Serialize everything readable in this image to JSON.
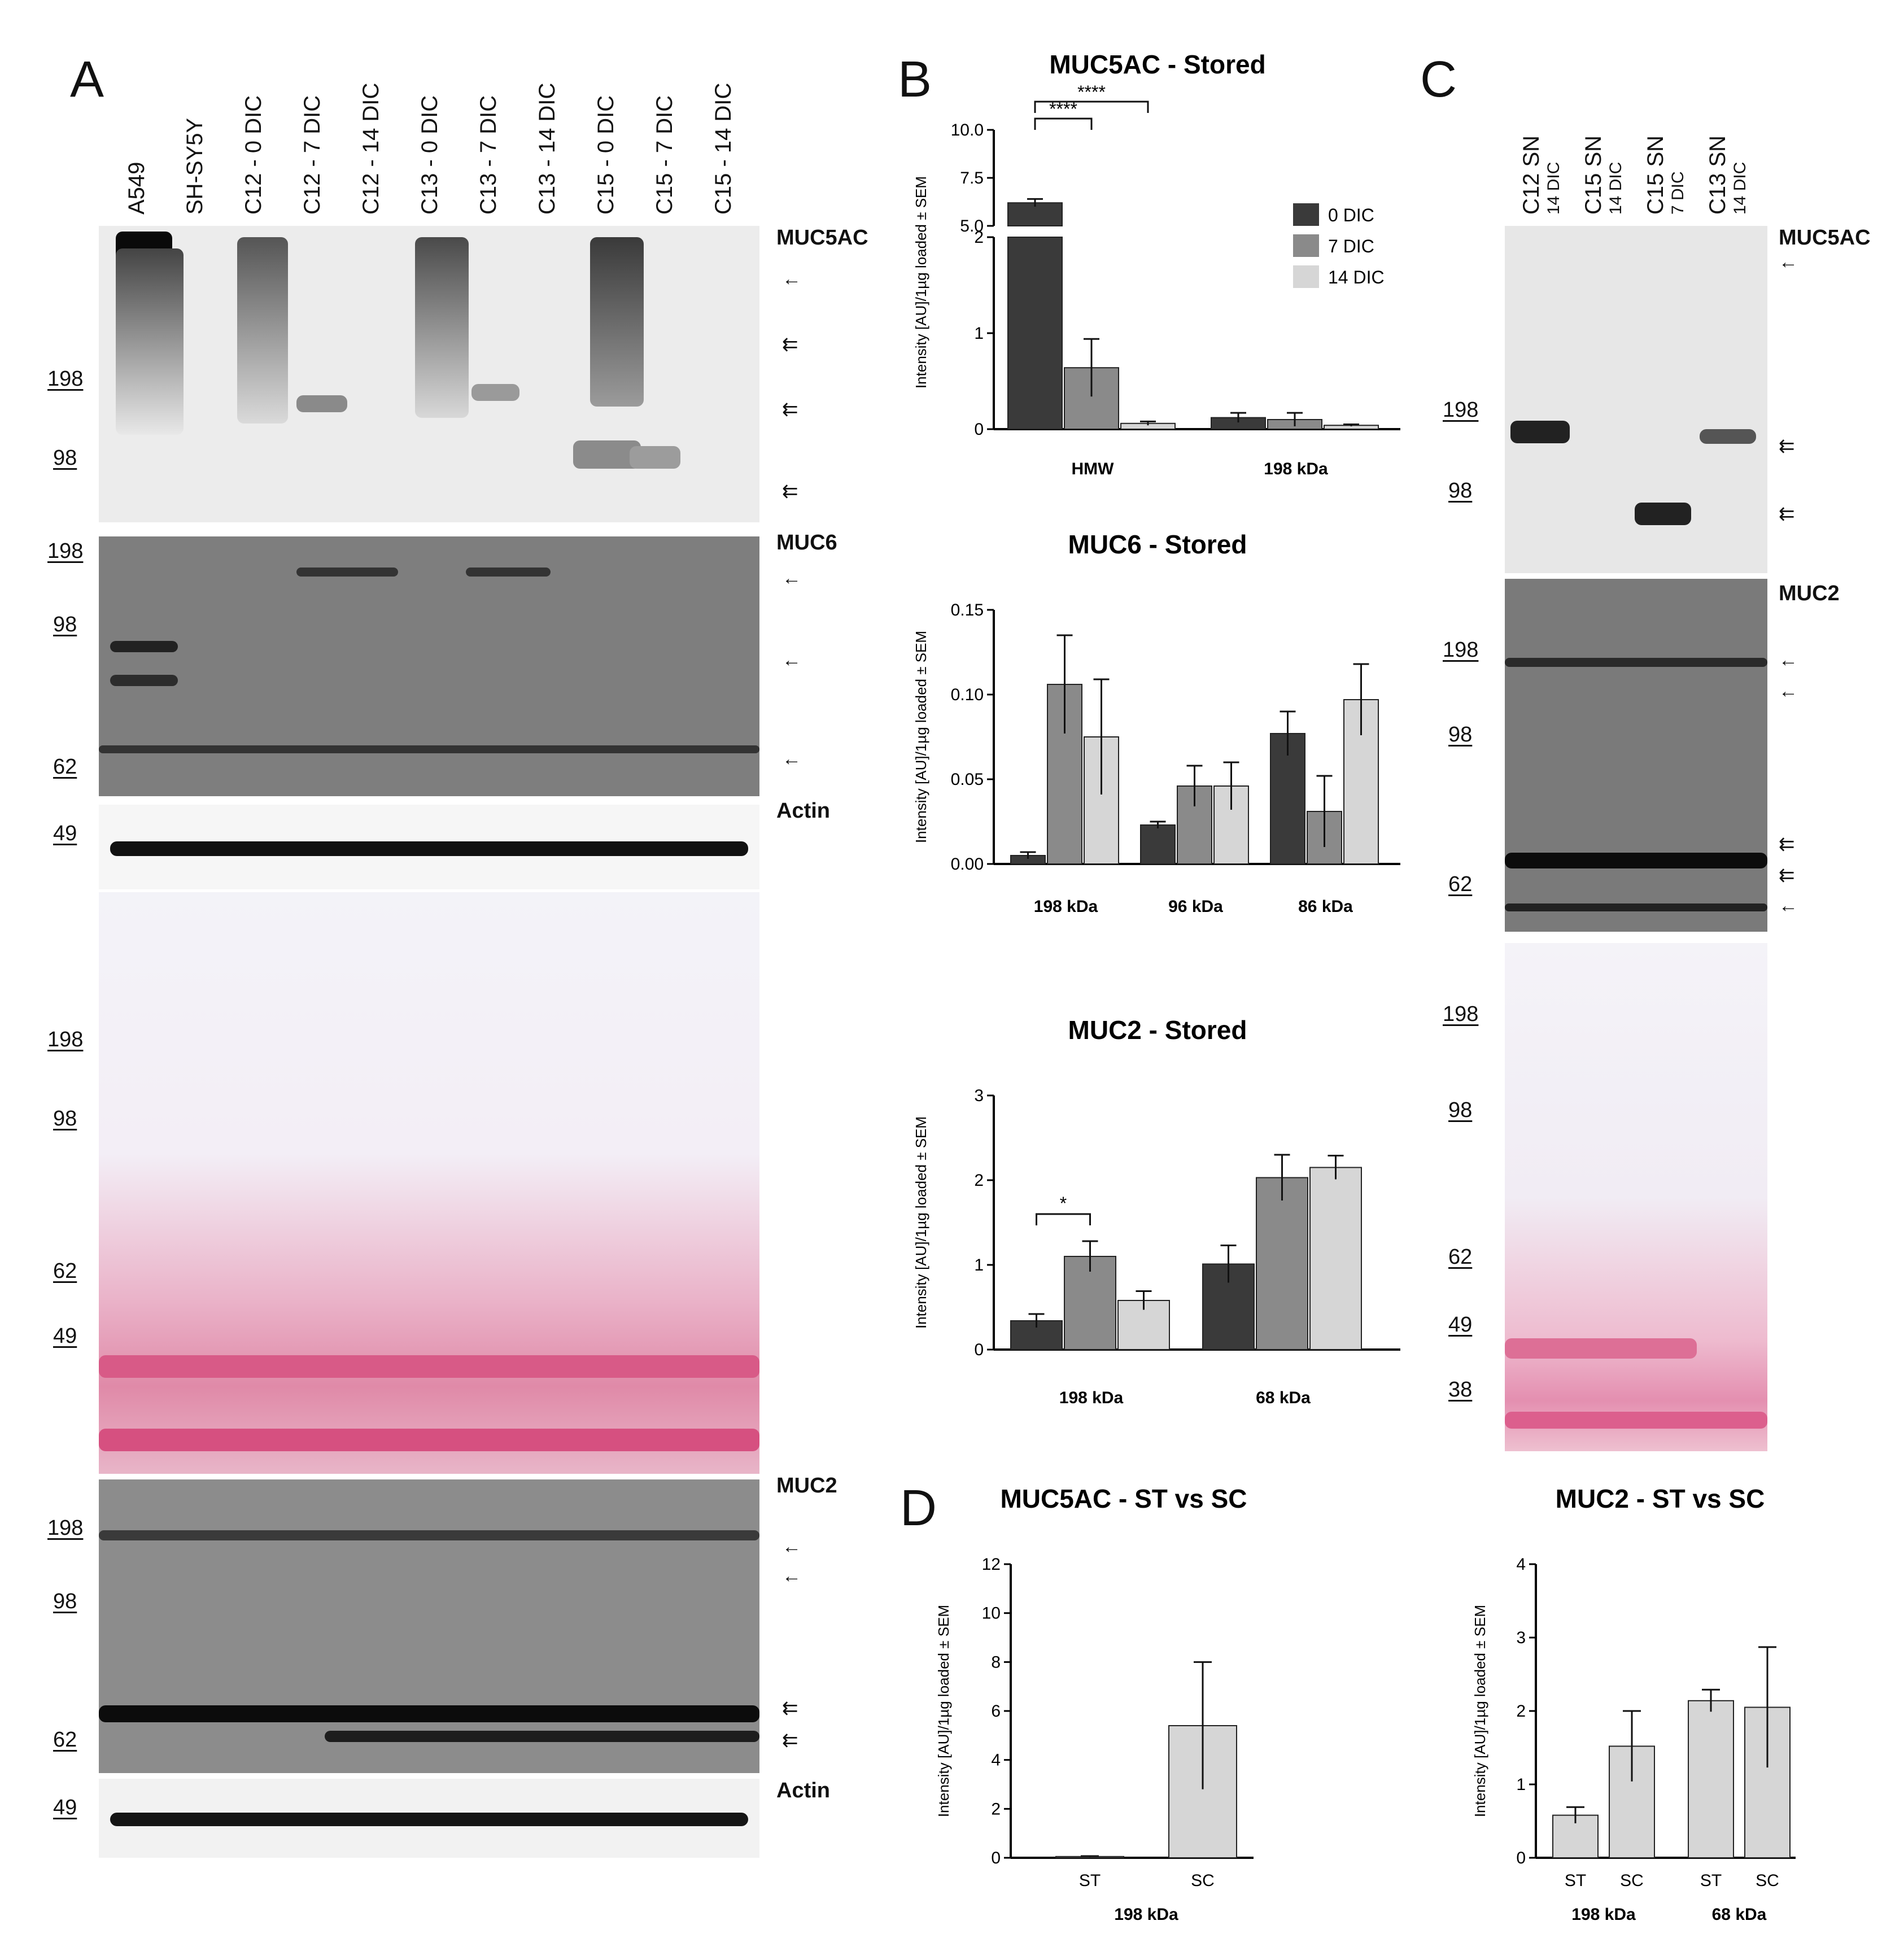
{
  "panels": {
    "A": "A",
    "B": "B",
    "C": "C",
    "D": "D"
  },
  "panelA": {
    "lanes": [
      "A549",
      "SH-SY5Y",
      "C12 - 0 DIC",
      "C12 - 7 DIC",
      "C12 - 14 DIC",
      "C13 - 0 DIC",
      "C13 - 7 DIC",
      "C13 - 14 DIC",
      "C15 - 0 DIC",
      "C15 - 7 DIC",
      "C15 - 14 DIC"
    ],
    "blots": {
      "muc5ac": {
        "label": "MUC5AC",
        "markers": [
          "198",
          "98"
        ]
      },
      "muc6": {
        "label": "MUC6",
        "markers": [
          "198",
          "98",
          "62"
        ]
      },
      "actin1": {
        "label": "Actin",
        "markers": [
          "49"
        ]
      },
      "ponceau": {
        "markers": [
          "198",
          "98",
          "62",
          "49"
        ]
      },
      "muc2": {
        "label": "MUC2",
        "markers": [
          "198",
          "98",
          "62"
        ]
      },
      "actin2": {
        "label": "Actin",
        "markers": [
          "49"
        ]
      }
    },
    "arrow_glyph": "←",
    "double_arrow_glyph": "⇇"
  },
  "panelC": {
    "lanes": [
      {
        "main": "C12 SN",
        "sub": "14 DIC"
      },
      {
        "main": "C15 SN",
        "sub": "14 DIC"
      },
      {
        "main": "C15 SN",
        "sub": "7 DIC"
      },
      {
        "main": "C13 SN",
        "sub": "14 DIC"
      }
    ],
    "blots": {
      "muc5ac": {
        "label": "MUC5AC",
        "markers": [
          "198",
          "98"
        ]
      },
      "muc2": {
        "label": "MUC2",
        "markers": [
          "198",
          "98",
          "62"
        ]
      },
      "ponceau": {
        "markers": [
          "198",
          "98",
          "62",
          "49",
          "38"
        ]
      }
    }
  },
  "legend": {
    "items": [
      {
        "label": "0 DIC",
        "color": "#3a3a3a"
      },
      {
        "label": "7 DIC",
        "color": "#8a8a8a"
      },
      {
        "label": "14 DIC",
        "color": "#d6d6d6"
      }
    ]
  },
  "chart_data": [
    {
      "id": "b1",
      "type": "bar",
      "title": "MUC5AC - Stored",
      "ylabel": "Intensity [AU]/1µg loaded ± SEM",
      "categories": [
        "HMW",
        "198 kDa"
      ],
      "ylim_lower": [
        0,
        2
      ],
      "ylim_upper": [
        5.0,
        10.0
      ],
      "yticks_lower": [
        "0",
        "1",
        "2"
      ],
      "yticks_upper": [
        "5.0",
        "7.5",
        "10.0"
      ],
      "series": [
        {
          "name": "0 DIC",
          "values": [
            6.2,
            0.12
          ],
          "sem": [
            0.2,
            0.05
          ]
        },
        {
          "name": "7 DIC",
          "values": [
            0.64,
            0.1
          ],
          "sem": [
            0.3,
            0.07
          ]
        },
        {
          "name": "14 DIC",
          "values": [
            0.06,
            0.04
          ],
          "sem": [
            0.02,
            0.01
          ]
        }
      ],
      "significance": [
        {
          "from": "0 DIC",
          "to": "7 DIC",
          "category": "HMW",
          "label": "****"
        },
        {
          "from": "0 DIC",
          "to": "14 DIC",
          "category": "HMW",
          "label": "****"
        }
      ]
    },
    {
      "id": "b2",
      "type": "bar",
      "title": "MUC6 - Stored",
      "ylabel": "Intensity [AU]/1µg loaded ± SEM",
      "categories": [
        "198 kDa",
        "96 kDa",
        "86 kDa"
      ],
      "ylim": [
        0,
        0.15
      ],
      "yticks": [
        "0.00",
        "0.05",
        "0.10",
        "0.15"
      ],
      "series": [
        {
          "name": "0 DIC",
          "values": [
            0.005,
            0.023,
            0.077
          ],
          "sem": [
            0.002,
            0.002,
            0.013
          ]
        },
        {
          "name": "7 DIC",
          "values": [
            0.106,
            0.046,
            0.031
          ],
          "sem": [
            0.029,
            0.012,
            0.021
          ]
        },
        {
          "name": "14 DIC",
          "values": [
            0.075,
            0.046,
            0.097
          ],
          "sem": [
            0.034,
            0.014,
            0.021
          ]
        }
      ]
    },
    {
      "id": "b3",
      "type": "bar",
      "title": "MUC2 - Stored",
      "ylabel": "Intensity [AU]/1µg loaded ± SEM",
      "categories": [
        "198 kDa",
        "68 kDa"
      ],
      "ylim": [
        0,
        3
      ],
      "yticks": [
        "0",
        "1",
        "2",
        "3"
      ],
      "series": [
        {
          "name": "0 DIC",
          "values": [
            0.34,
            1.01
          ],
          "sem": [
            0.08,
            0.22
          ]
        },
        {
          "name": "7 DIC",
          "values": [
            1.1,
            2.03
          ],
          "sem": [
            0.18,
            0.27
          ]
        },
        {
          "name": "14 DIC",
          "values": [
            0.58,
            2.15
          ],
          "sem": [
            0.11,
            0.14
          ]
        }
      ],
      "significance": [
        {
          "from": "0 DIC",
          "to": "7 DIC",
          "category": "198 kDa",
          "label": "*"
        }
      ]
    },
    {
      "id": "d1",
      "type": "bar",
      "title": "MUC5AC - ST vs SC",
      "ylabel": "Intensity [AU]/1µg loaded ± SEM",
      "categories": [
        "ST",
        "SC"
      ],
      "group_label": "198 kDa",
      "ylim": [
        0,
        12
      ],
      "yticks": [
        "0",
        "2",
        "4",
        "6",
        "8",
        "10",
        "12"
      ],
      "values": [
        0.05,
        5.4
      ],
      "sem": [
        0.02,
        2.6
      ]
    },
    {
      "id": "d2",
      "type": "bar",
      "title": "MUC2 - ST vs SC",
      "ylabel": "Intensity [AU]/1µg loaded ± SEM",
      "categories": [
        "ST",
        "SC",
        "ST",
        "SC"
      ],
      "group_labels": [
        "198 kDa",
        "68 kDa"
      ],
      "ylim": [
        0,
        4
      ],
      "yticks": [
        "0",
        "1",
        "2",
        "3",
        "4"
      ],
      "values": [
        0.58,
        1.52,
        2.14,
        2.05
      ],
      "sem": [
        0.11,
        0.48,
        0.15,
        0.82
      ]
    }
  ]
}
